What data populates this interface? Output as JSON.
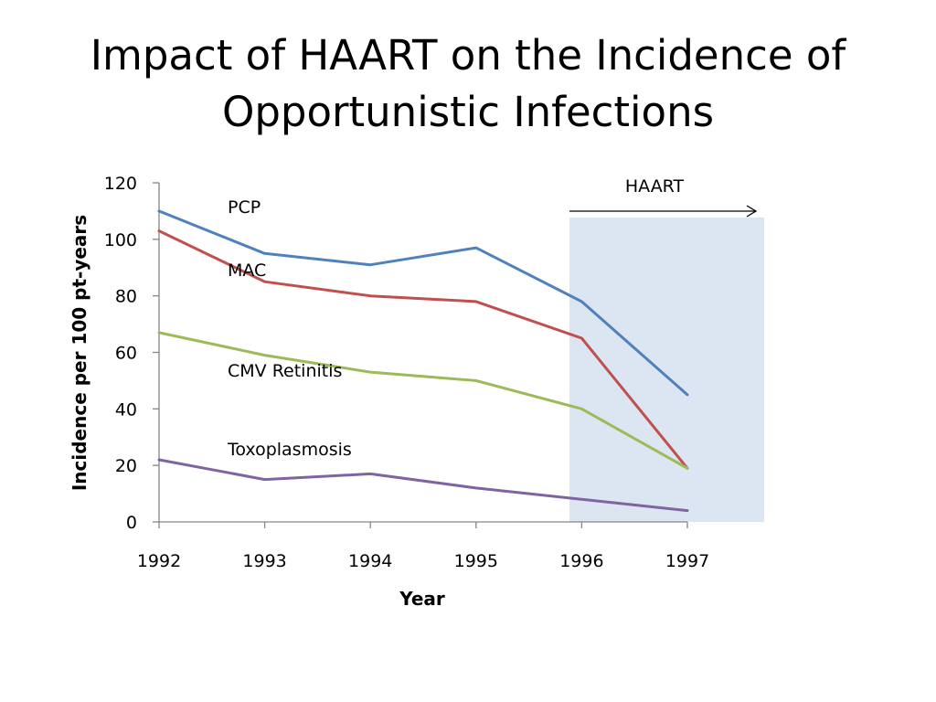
{
  "slide": {
    "title_line1": "Impact of HAART on the Incidence of",
    "title_line2": "Opportunistic Infections"
  },
  "chart_data": {
    "type": "line",
    "title": "Impact of HAART on the Incidence of Opportunistic Infections",
    "xlabel": "Year",
    "ylabel": "Incidence per 100 pt-years",
    "categories": [
      "1992",
      "1993",
      "1994",
      "1995",
      "1996",
      "1997"
    ],
    "yticks": [
      0,
      20,
      40,
      60,
      80,
      100,
      120
    ],
    "ylim": [
      0,
      120
    ],
    "grid": false,
    "legend": "none (series labeled inline)",
    "series": [
      {
        "name": "PCP",
        "color": "#4F81BD",
        "values": [
          110,
          95,
          91,
          97,
          78,
          45
        ]
      },
      {
        "name": "MAC",
        "color": "#C0504D",
        "values": [
          103,
          85,
          80,
          78,
          65,
          19
        ]
      },
      {
        "name": "CMV Retinitis",
        "color": "#9BBB59",
        "values": [
          67,
          59,
          53,
          50,
          40,
          19
        ]
      },
      {
        "name": "Toxoplasmosis",
        "color": "#8064A2",
        "values": [
          22,
          15,
          17,
          12,
          8,
          4
        ]
      }
    ],
    "annotation": {
      "text": "HAART",
      "shaded_region_color": "#DCE6F2",
      "arrow": "right"
    }
  }
}
